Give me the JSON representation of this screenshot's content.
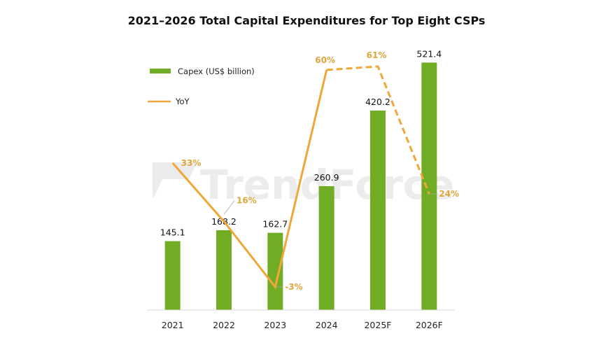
{
  "chart_data": {
    "type": "bar",
    "title": "2021–2026 Total Capital Expenditures for Top Eight CSPs",
    "categories": [
      "2021",
      "2022",
      "2023",
      "2024",
      "2025F",
      "2026F"
    ],
    "xlabel": "",
    "ylabel": "",
    "ylim": [
      0,
      550
    ],
    "grid": false,
    "legend_position": "top-left",
    "watermark": "TrendForce",
    "colors": {
      "bar": "#71ad24",
      "line": "#f0a73a",
      "yoy_label": "#e0a53a"
    },
    "series": [
      {
        "name": "Capex (US$ billion)",
        "type": "bar",
        "values": [
          145.1,
          168.2,
          162.7,
          260.9,
          420.2,
          521.4
        ],
        "labels": [
          "145.1",
          "168.2",
          "162.7",
          "260.9",
          "420.2",
          "521.4"
        ]
      },
      {
        "name": "YoY",
        "type": "line",
        "unit": "%",
        "values": [
          33,
          16,
          -3,
          60,
          61,
          24
        ],
        "labels": [
          "33%",
          "16%",
          "-3%",
          "60%",
          "61%",
          "24%"
        ],
        "forecast_from_index": 3,
        "ylim": [
          -10,
          65
        ]
      }
    ]
  }
}
